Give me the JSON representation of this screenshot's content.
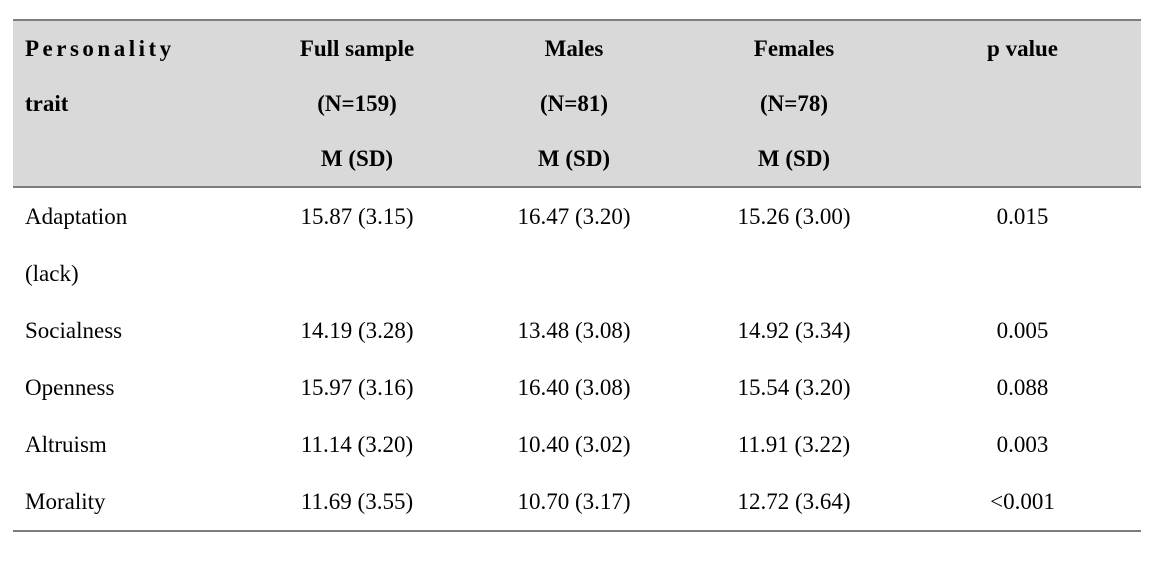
{
  "table": {
    "header": {
      "trait": [
        "Personality",
        "trait"
      ],
      "full_sample": [
        "Full sample",
        "(N=159)",
        "M (SD)"
      ],
      "males": [
        "Males",
        "(N=81)",
        "M (SD)"
      ],
      "females": [
        "Females",
        "(N=78)",
        "M (SD)"
      ],
      "p_value": [
        "p value"
      ]
    },
    "rows": [
      {
        "trait": [
          "Adaptation",
          "(lack)"
        ],
        "full_sample": "15.87 (3.15)",
        "males": "16.47 (3.20)",
        "females": "15.26 (3.00)",
        "p_value": "0.015"
      },
      {
        "trait": [
          "Socialness"
        ],
        "full_sample": "14.19 (3.28)",
        "males": "13.48 (3.08)",
        "females": "14.92 (3.34)",
        "p_value": "0.005"
      },
      {
        "trait": [
          "Openness"
        ],
        "full_sample": "15.97 (3.16)",
        "males": "16.40 (3.08)",
        "females": "15.54 (3.20)",
        "p_value": "0.088"
      },
      {
        "trait": [
          "Altruism"
        ],
        "full_sample": "11.14 (3.20)",
        "males": "10.40 (3.02)",
        "females": "11.91 (3.22)",
        "p_value": "0.003"
      },
      {
        "trait": [
          "Morality"
        ],
        "full_sample": "11.69 (3.55)",
        "males": "10.70 (3.17)",
        "females": "12.72 (3.64)",
        "p_value": "<0.001"
      }
    ],
    "colors": {
      "header_bg": "#d9d9d9",
      "rule": "#7d7d7d"
    }
  }
}
